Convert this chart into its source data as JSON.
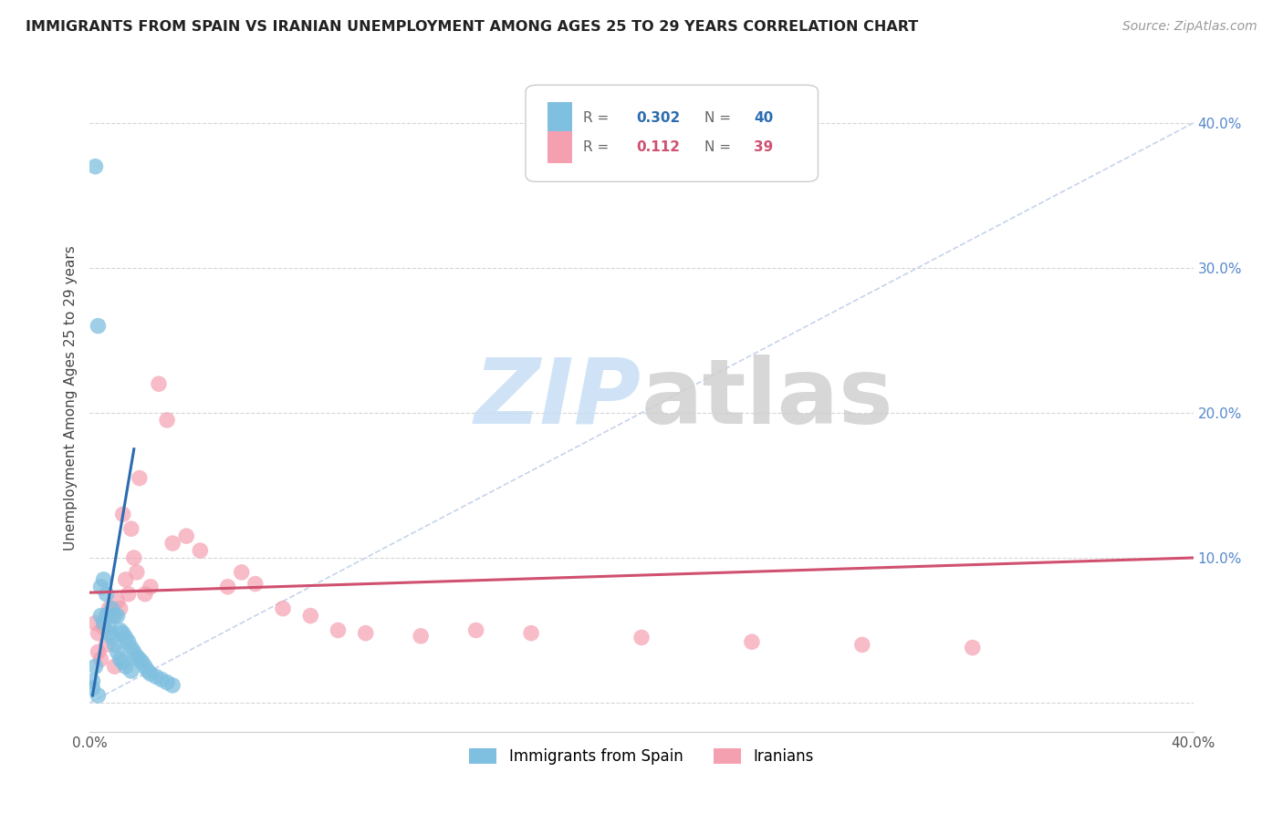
{
  "title": "IMMIGRANTS FROM SPAIN VS IRANIAN UNEMPLOYMENT AMONG AGES 25 TO 29 YEARS CORRELATION CHART",
  "source": "Source: ZipAtlas.com",
  "ylabel": "Unemployment Among Ages 25 to 29 years",
  "xlim": [
    0.0,
    0.4
  ],
  "ylim": [
    -0.02,
    0.44
  ],
  "yticks": [
    0.0,
    0.1,
    0.2,
    0.3,
    0.4
  ],
  "ytick_labels": [
    "",
    "10.0%",
    "20.0%",
    "30.0%",
    "40.0%"
  ],
  "spain_color": "#7fbfdf",
  "iran_color": "#f4a0b0",
  "spain_line_color": "#2b6cb0",
  "iran_line_color": "#d05070",
  "diagonal_color": "#c0cfe8",
  "watermark_zip": "ZIP",
  "watermark_atlas": "atlas",
  "background_color": "#ffffff",
  "ytick_color": "#5588cc",
  "spain_scatter_x": [
    0.002,
    0.003,
    0.004,
    0.004,
    0.005,
    0.005,
    0.006,
    0.006,
    0.007,
    0.007,
    0.008,
    0.008,
    0.009,
    0.009,
    0.01,
    0.01,
    0.011,
    0.011,
    0.012,
    0.012,
    0.013,
    0.013,
    0.014,
    0.015,
    0.015,
    0.016,
    0.017,
    0.018,
    0.019,
    0.02,
    0.021,
    0.022,
    0.024,
    0.026,
    0.028,
    0.03,
    0.001,
    0.001,
    0.002,
    0.003
  ],
  "spain_scatter_y": [
    0.37,
    0.26,
    0.08,
    0.06,
    0.085,
    0.055,
    0.075,
    0.06,
    0.052,
    0.048,
    0.065,
    0.045,
    0.06,
    0.04,
    0.06,
    0.035,
    0.05,
    0.03,
    0.048,
    0.028,
    0.045,
    0.025,
    0.042,
    0.038,
    0.022,
    0.035,
    0.032,
    0.03,
    0.028,
    0.025,
    0.022,
    0.02,
    0.018,
    0.016,
    0.014,
    0.012,
    0.015,
    0.01,
    0.025,
    0.005
  ],
  "iran_scatter_x": [
    0.002,
    0.003,
    0.005,
    0.007,
    0.008,
    0.01,
    0.011,
    0.012,
    0.013,
    0.014,
    0.015,
    0.016,
    0.017,
    0.018,
    0.02,
    0.022,
    0.025,
    0.028,
    0.03,
    0.035,
    0.04,
    0.05,
    0.055,
    0.06,
    0.07,
    0.08,
    0.09,
    0.1,
    0.12,
    0.14,
    0.16,
    0.2,
    0.24,
    0.28,
    0.32,
    0.003,
    0.004,
    0.006,
    0.009
  ],
  "iran_scatter_y": [
    0.055,
    0.048,
    0.052,
    0.065,
    0.06,
    0.07,
    0.065,
    0.13,
    0.085,
    0.075,
    0.12,
    0.1,
    0.09,
    0.155,
    0.075,
    0.08,
    0.22,
    0.195,
    0.11,
    0.115,
    0.105,
    0.08,
    0.09,
    0.082,
    0.065,
    0.06,
    0.05,
    0.048,
    0.046,
    0.05,
    0.048,
    0.045,
    0.042,
    0.04,
    0.038,
    0.035,
    0.03,
    0.04,
    0.025
  ],
  "spain_line_x0": 0.001,
  "spain_line_y0": 0.005,
  "spain_line_x1": 0.016,
  "spain_line_y1": 0.175,
  "iran_line_x0": 0.0,
  "iran_line_y0": 0.076,
  "iran_line_x1": 0.4,
  "iran_line_y1": 0.1
}
